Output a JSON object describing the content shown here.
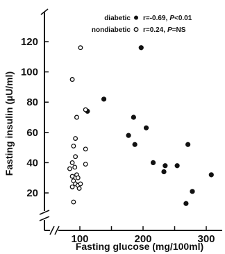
{
  "chart_data": {
    "type": "scatter",
    "xlabel": "Fasting glucose (mg/100ml)",
    "ylabel": "Fasting insulin (µU/ml)",
    "xlim": [
      60,
      325
    ],
    "ylim": [
      0,
      135
    ],
    "x_ticks": [
      100,
      150,
      200,
      250,
      300
    ],
    "x_tick_labels": [
      "100",
      "",
      "200",
      "",
      "300"
    ],
    "y_ticks": [
      20,
      40,
      60,
      80,
      100,
      120
    ],
    "y_tick_labels": [
      "20",
      "40",
      "60",
      "80",
      "100",
      "120"
    ],
    "axis_breaks": true,
    "legend_position": "top-right",
    "colors": {
      "diabetic": "#111111",
      "nondiabetic": "#ffffff",
      "ink": "#111111"
    },
    "legend": [
      {
        "marker": "filled",
        "label": "diabetic",
        "r_text": "r=-0.69,",
        "p_letter": "P",
        "p_text": "<0.01"
      },
      {
        "marker": "open",
        "label": "nondiabetic",
        "r_text": "r=0.24,",
        "p_letter": "P",
        "p_text": "=NS"
      }
    ],
    "series": [
      {
        "name": "diabetic",
        "marker": "filled",
        "points": [
          [
            112,
            74
          ],
          [
            138,
            82
          ],
          [
            177,
            58
          ],
          [
            185,
            70
          ],
          [
            187,
            52
          ],
          [
            197,
            116
          ],
          [
            205,
            63
          ],
          [
            216,
            40
          ],
          [
            233,
            34
          ],
          [
            235,
            38
          ],
          [
            254,
            38
          ],
          [
            268,
            13
          ],
          [
            271,
            52
          ],
          [
            278,
            21
          ],
          [
            308,
            32
          ]
        ]
      },
      {
        "name": "nondiabetic",
        "marker": "open",
        "points": [
          [
            101,
            116
          ],
          [
            88,
            95
          ],
          [
            95,
            70
          ],
          [
            109,
            75
          ],
          [
            93,
            56
          ],
          [
            90,
            51
          ],
          [
            109,
            49
          ],
          [
            93,
            44
          ],
          [
            88,
            40
          ],
          [
            84,
            36
          ],
          [
            92,
            37
          ],
          [
            109,
            39
          ],
          [
            95,
            32
          ],
          [
            88,
            31
          ],
          [
            97,
            30
          ],
          [
            90,
            28
          ],
          [
            93,
            26
          ],
          [
            97,
            25
          ],
          [
            101,
            26
          ],
          [
            88,
            24
          ],
          [
            99,
            23
          ],
          [
            90,
            14
          ]
        ]
      }
    ]
  }
}
